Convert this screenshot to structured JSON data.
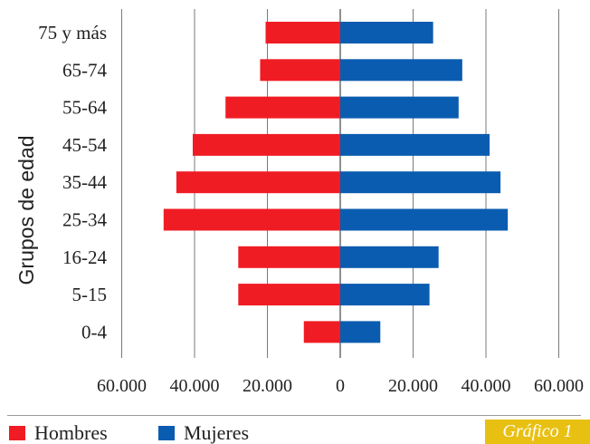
{
  "chart_data": {
    "type": "bar",
    "orientation": "horizontal",
    "layout": "population-pyramid",
    "ylabel": "Grupos de edad",
    "categories": [
      "75 y más",
      "65-74",
      "55-64",
      "45-54",
      "35-44",
      "25-34",
      "16-24",
      "5-15",
      "0-4"
    ],
    "series": [
      {
        "name": "Hombres",
        "color": "#f01c24",
        "direction": "left",
        "values": [
          20500,
          22000,
          31500,
          40500,
          45000,
          48500,
          28000,
          28000,
          10000
        ]
      },
      {
        "name": "Mujeres",
        "color": "#0a5cb0",
        "direction": "right",
        "values": [
          25500,
          33500,
          32500,
          41000,
          44000,
          46000,
          27000,
          24500,
          11000
        ]
      }
    ],
    "xticks": [
      "60.000",
      "40.000",
      "20.000",
      "0",
      "20.000",
      "40.000",
      "60.000"
    ],
    "xlim": [
      -60000,
      60000
    ],
    "grid": true,
    "legend_position": "bottom-left"
  },
  "legend": {
    "men": "Hombres",
    "women": "Mujeres"
  },
  "badge": "Gráfico 1"
}
